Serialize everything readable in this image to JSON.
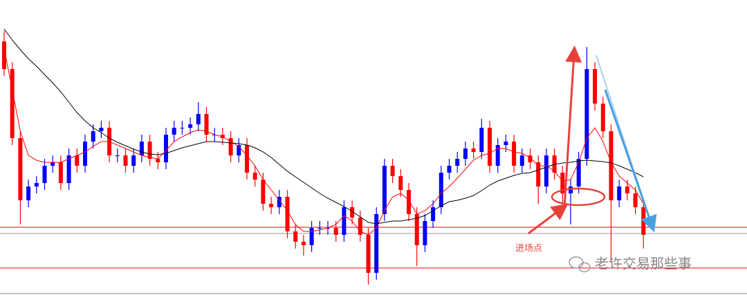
{
  "chart_data": {
    "type": "candlestick",
    "up_color": "#0000ff",
    "down_color": "#ff0000",
    "ylim": [
      0,
      430
    ],
    "open": [
      370,
      330,
      230,
      140,
      160,
      165,
      190,
      195,
      165,
      205,
      190,
      225,
      240,
      245,
      205,
      205,
      190,
      205,
      225,
      200,
      195,
      235,
      245,
      245,
      250,
      265,
      235,
      235,
      230,
      205,
      220,
      180,
      170,
      135,
      130,
      145,
      95,
      80,
      75,
      100,
      100,
      100,
      90,
      130,
      115,
      90,
      35,
      120,
      190,
      175,
      155,
      120,
      75,
      110,
      130,
      180,
      190,
      200,
      215,
      210,
      245,
      190,
      220,
      225,
      190,
      205,
      195,
      160,
      205,
      180,
      150,
      160,
      200,
      330,
      280,
      240,
      140,
      160,
      150,
      130
    ],
    "high": [
      385,
      340,
      240,
      170,
      175,
      200,
      205,
      205,
      215,
      215,
      235,
      250,
      255,
      255,
      215,
      215,
      215,
      235,
      235,
      210,
      245,
      255,
      255,
      260,
      282,
      275,
      245,
      245,
      240,
      230,
      230,
      190,
      180,
      145,
      155,
      155,
      105,
      90,
      110,
      110,
      110,
      110,
      140,
      140,
      125,
      100,
      130,
      200,
      200,
      185,
      165,
      130,
      120,
      140,
      190,
      200,
      210,
      225,
      225,
      258,
      255,
      230,
      235,
      235,
      215,
      215,
      205,
      215,
      215,
      190,
      170,
      210,
      362,
      340,
      290,
      250,
      170,
      170,
      160,
      140
    ],
    "low": [
      320,
      220,
      105,
      130,
      150,
      155,
      180,
      155,
      155,
      180,
      180,
      215,
      230,
      195,
      195,
      180,
      180,
      195,
      190,
      185,
      185,
      225,
      235,
      235,
      240,
      225,
      225,
      220,
      195,
      195,
      170,
      160,
      125,
      120,
      120,
      85,
      70,
      60,
      65,
      90,
      90,
      80,
      80,
      105,
      80,
      18,
      25,
      110,
      165,
      145,
      110,
      45,
      65,
      100,
      120,
      170,
      180,
      190,
      200,
      200,
      180,
      180,
      210,
      180,
      180,
      185,
      135,
      150,
      170,
      135,
      105,
      150,
      190,
      270,
      230,
      50,
      130,
      140,
      120,
      70
    ],
    "close": [
      330,
      230,
      140,
      160,
      165,
      190,
      195,
      165,
      205,
      190,
      225,
      240,
      245,
      205,
      205,
      190,
      205,
      225,
      200,
      195,
      235,
      245,
      245,
      250,
      265,
      235,
      235,
      230,
      205,
      220,
      180,
      170,
      135,
      130,
      145,
      95,
      80,
      75,
      100,
      100,
      100,
      90,
      130,
      115,
      90,
      35,
      120,
      190,
      175,
      155,
      120,
      75,
      110,
      130,
      180,
      190,
      200,
      215,
      210,
      245,
      190,
      220,
      225,
      190,
      205,
      195,
      160,
      205,
      180,
      150,
      160,
      200,
      330,
      280,
      240,
      140,
      160,
      150,
      130,
      90
    ],
    "lines": [
      {
        "color": "#ff0000",
        "values": [
          360,
          300,
          240,
          205,
          198,
          195,
          195,
          195,
          200,
          205,
          210,
          218,
          225,
          225,
          220,
          215,
          210,
          205,
          202,
          200,
          212,
          225,
          232,
          238,
          242,
          240,
          235,
          232,
          225,
          218,
          205,
          190,
          170,
          155,
          140,
          125,
          105,
          95,
          95,
          97,
          100,
          105,
          118,
          110,
          95,
          90,
          100,
          125,
          145,
          150,
          140,
          120,
          125,
          135,
          150,
          160,
          172,
          185,
          198,
          205,
          208,
          215,
          215,
          210,
          208,
          202,
          190,
          190,
          182,
          168,
          170,
          195,
          230,
          245,
          225,
          195,
          175,
          165,
          155,
          135
        ]
      },
      {
        "color": "#000000",
        "values": [
          388,
          372,
          358,
          345,
          334,
          322,
          310,
          297,
          282,
          267,
          255,
          245,
          238,
          230,
          224,
          219,
          214,
          210,
          207,
          206,
          208,
          212,
          216,
          219,
          222,
          225,
          225,
          224,
          223,
          222,
          220,
          216,
          210,
          202,
          192,
          182,
          174,
          166,
          158,
          150,
          143,
          137,
          131,
          124,
          116,
          108,
          106,
          108,
          110,
          110,
          112,
          114,
          118,
          125,
          132,
          138,
          140,
          143,
          147,
          154,
          162,
          168,
          172,
          176,
          179,
          180,
          184,
          188,
          192,
          194,
          195,
          197,
          198,
          197,
          196,
          194,
          190,
          185,
          180,
          174
        ]
      }
    ],
    "levels": [
      {
        "value": 101,
        "color": "#ff0000"
      },
      {
        "value": 92,
        "color": "#999999"
      },
      {
        "value": 42,
        "color": "#ff0000"
      }
    ],
    "annotation": "进场点",
    "watermark": "老许交易那些事"
  }
}
